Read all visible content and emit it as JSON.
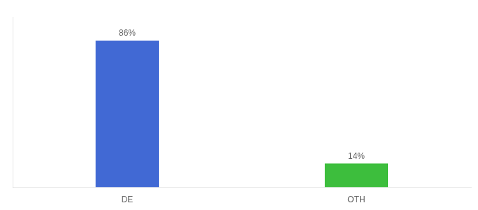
{
  "chart_data": {
    "type": "bar",
    "categories": [
      "DE",
      "OTH"
    ],
    "values": [
      86,
      14
    ],
    "value_labels": [
      "86%",
      "14%"
    ],
    "colors": [
      "#4169d4",
      "#3dbe3d"
    ],
    "ylim": [
      0,
      100
    ],
    "grid": false,
    "data_labels": true,
    "tick_labels": "x"
  }
}
